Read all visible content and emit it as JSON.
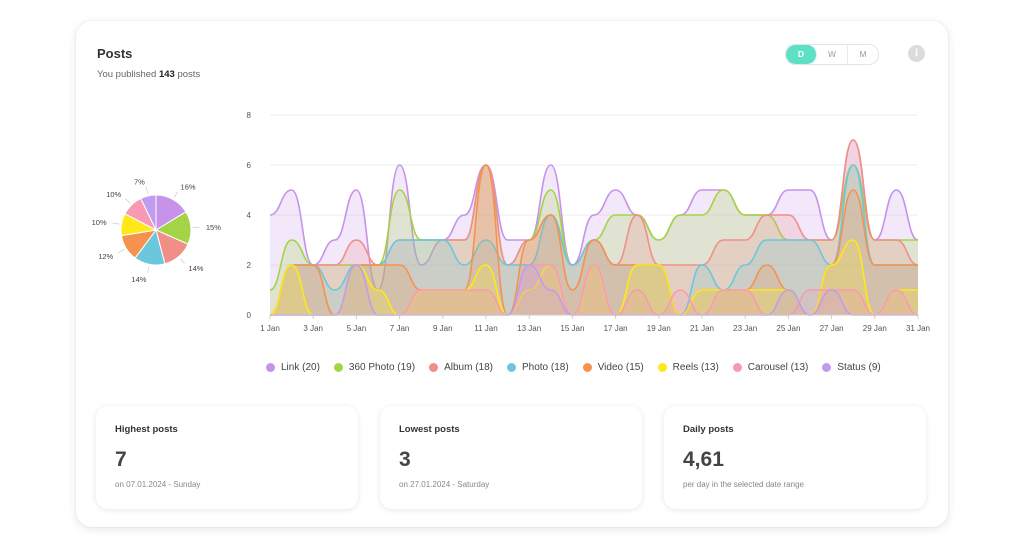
{
  "header": {
    "title": "Posts",
    "subtitle_prefix": "You published",
    "subtitle_count": "143",
    "subtitle_suffix": "posts"
  },
  "range_toggle": {
    "options": [
      "D",
      "W",
      "M"
    ],
    "selected": "D"
  },
  "info_icon": {
    "glyph": "i",
    "icon": "info-icon"
  },
  "chart_data": [
    {
      "type": "pie",
      "slices": [
        {
          "name": "Link",
          "value": 16,
          "label": "16%",
          "color": "#c792ea"
        },
        {
          "name": "360 Photo",
          "value": 15,
          "label": "15%",
          "color": "#a3d445"
        },
        {
          "name": "Album",
          "value": 14,
          "label": "14%",
          "color": "#f08f88"
        },
        {
          "name": "Photo",
          "value": 14,
          "label": "14%",
          "color": "#6cc7dc"
        },
        {
          "name": "Video",
          "value": 12,
          "label": "12%",
          "color": "#f5924e"
        },
        {
          "name": "Reels",
          "value": 10,
          "label": "10%",
          "color": "#ffe81a"
        },
        {
          "name": "Carousel",
          "value": 10,
          "label": "10%",
          "color": "#f89ab4"
        },
        {
          "name": "Status",
          "value": 7,
          "label": "7%",
          "color": "#c09cf0"
        }
      ]
    },
    {
      "type": "area",
      "ylim": [
        0,
        8
      ],
      "yticks": [
        "0",
        "2",
        "4",
        "6",
        "8"
      ],
      "x": [
        "1 Jan",
        "2 Jan",
        "3 Jan",
        "4 Jan",
        "5 Jan",
        "6 Jan",
        "7 Jan",
        "8 Jan",
        "9 Jan",
        "10 Jan",
        "11 Jan",
        "12 Jan",
        "13 Jan",
        "14 Jan",
        "15 Jan",
        "16 Jan",
        "17 Jan",
        "18 Jan",
        "19 Jan",
        "20 Jan",
        "21 Jan",
        "22 Jan",
        "23 Jan",
        "24 Jan",
        "25 Jan",
        "26 Jan",
        "27 Jan",
        "28 Jan",
        "29 Jan",
        "30 Jan",
        "31 Jan"
      ],
      "xticks": [
        "1 Jan",
        "3 Jan",
        "5 Jan",
        "7 Jan",
        "9 Jan",
        "11 Jan",
        "13 Jan",
        "15 Jan",
        "17 Jan",
        "19 Jan",
        "21 Jan",
        "23 Jan",
        "25 Jan",
        "27 Jan",
        "29 Jan",
        "31 Jan"
      ],
      "grid": true,
      "legend_position": "bottom",
      "series": [
        {
          "name": "Link (20)",
          "color": "#c792ea",
          "values": [
            4,
            5,
            2,
            3,
            5,
            1,
            6,
            2,
            3,
            4,
            6,
            3,
            3,
            6,
            2,
            4,
            5,
            4,
            3,
            4,
            5,
            5,
            4,
            4,
            5,
            5,
            3,
            7,
            3,
            5,
            3
          ]
        },
        {
          "name": "360 Photo (19)",
          "color": "#a3d445",
          "values": [
            1,
            3,
            2,
            2,
            2,
            2,
            5,
            3,
            3,
            3,
            6,
            2,
            3,
            5,
            2,
            3,
            4,
            4,
            3,
            4,
            4,
            5,
            4,
            4,
            3,
            3,
            3,
            6,
            3,
            3,
            3
          ]
        },
        {
          "name": "Album (18)",
          "color": "#f08f88",
          "values": [
            0,
            2,
            2,
            2,
            3,
            2,
            3,
            3,
            3,
            3,
            6,
            2,
            3,
            4,
            2,
            3,
            2,
            4,
            2,
            2,
            2,
            3,
            3,
            4,
            4,
            3,
            3,
            7,
            3,
            3,
            2
          ]
        },
        {
          "name": "Photo (18)",
          "color": "#6cc7dc",
          "values": [
            0,
            2,
            2,
            1,
            2,
            2,
            3,
            3,
            3,
            2,
            3,
            2,
            2,
            4,
            2,
            3,
            2,
            2,
            2,
            0,
            2,
            1,
            2,
            3,
            3,
            3,
            2,
            6,
            2,
            2,
            2
          ]
        },
        {
          "name": "Video (15)",
          "color": "#f5924e",
          "values": [
            0,
            2,
            2,
            0,
            2,
            2,
            2,
            1,
            1,
            1,
            6,
            0,
            3,
            4,
            1,
            3,
            2,
            2,
            2,
            0,
            1,
            1,
            1,
            2,
            1,
            0,
            2,
            5,
            2,
            2,
            2
          ]
        },
        {
          "name": "Reels (13)",
          "color": "#ffe81a",
          "values": [
            0,
            2,
            0,
            0,
            2,
            1,
            0,
            1,
            1,
            1,
            2,
            0,
            1,
            2,
            0,
            2,
            0,
            2,
            2,
            0,
            1,
            1,
            1,
            1,
            1,
            0,
            2,
            3,
            0,
            1,
            1
          ]
        },
        {
          "name": "Carousel (13)",
          "color": "#f89ab4",
          "values": [
            0,
            0,
            0,
            0,
            0,
            0,
            0,
            1,
            1,
            1,
            1,
            0,
            2,
            2,
            0,
            2,
            0,
            1,
            0,
            1,
            0,
            1,
            1,
            0,
            0,
            1,
            1,
            1,
            0,
            1,
            0
          ]
        },
        {
          "name": "Status (9)",
          "color": "#c09cf0",
          "values": [
            0,
            0,
            0,
            0,
            2,
            0,
            0,
            0,
            0,
            0,
            0,
            0,
            2,
            1,
            0,
            0,
            0,
            0,
            0,
            0,
            0,
            0,
            0,
            0,
            1,
            0,
            1,
            0,
            0,
            0,
            0
          ]
        }
      ]
    }
  ],
  "stats": [
    {
      "label": "Highest posts",
      "value": "7",
      "sub": "on 07.01.2024 - Sunday"
    },
    {
      "label": "Lowest posts",
      "value": "3",
      "sub": "on 27.01.2024 - Saturday"
    },
    {
      "label": "Daily posts",
      "value": "4,61",
      "sub": "per day in the selected date range"
    }
  ]
}
